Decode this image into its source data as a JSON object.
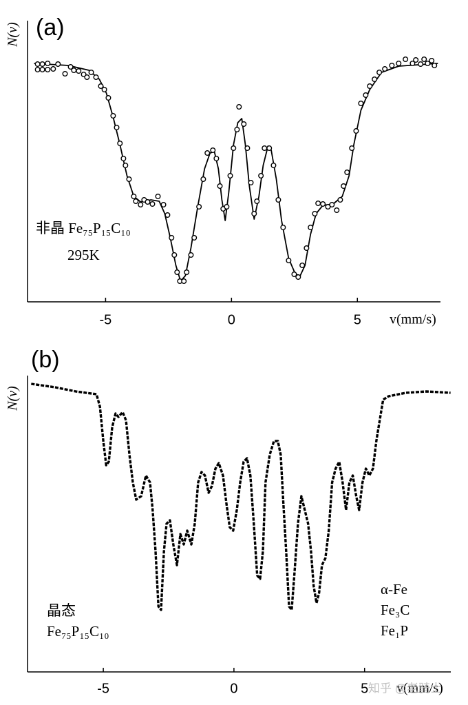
{
  "chart_data": [
    {
      "type": "line",
      "title": "(a)",
      "ylabel": "N(v)",
      "xlabel": "v(mm/s)",
      "annotations": [
        "非晶 Fe₇₅P₁₅C₁₀",
        "295K"
      ],
      "xlim": [
        -8.1,
        8.3
      ],
      "xticks": [
        -5,
        0,
        5
      ],
      "ylim": [
        0,
        408
      ],
      "series": [
        {
          "mode": "lines",
          "color": "#000000",
          "x": [
            -7.84,
            -6.48,
            -5.66,
            -5.25,
            -4.97,
            -4.7,
            -4.43,
            -4.15,
            -3.88,
            -3.61,
            -3.2,
            -2.87,
            -2.65,
            -2.43,
            -2.21,
            -2.02,
            -1.83,
            -1.61,
            -1.34,
            -1.07,
            -0.85,
            -0.68,
            -0.52,
            -0.38,
            -0.25,
            -0.11,
            0.08,
            0.25,
            0.41,
            0.55,
            0.71,
            0.9,
            1.09,
            1.26,
            1.45,
            1.58,
            1.78,
            1.99,
            2.27,
            2.54,
            2.73,
            2.92,
            3.14,
            3.36,
            3.63,
            4.04,
            4.4,
            4.67,
            4.86,
            5.14,
            5.49,
            5.96,
            6.64,
            8.2
          ],
          "values": [
            346,
            343,
            336,
            323,
            303,
            268,
            228,
            183,
            153,
            145,
            148,
            146,
            128,
            93,
            53,
            30,
            38,
            78,
            138,
            193,
            216,
            218,
            193,
            148,
            118,
            158,
            228,
            260,
            266,
            228,
            168,
            120,
            153,
            198,
            226,
            220,
            178,
            118,
            63,
            40,
            38,
            53,
            98,
            128,
            140,
            142,
            153,
            183,
            228,
            278,
            308,
            333,
            342,
            346
          ]
        },
        {
          "mode": "markers",
          "color": "#000000",
          "x": [
            -7.7,
            -7.7,
            -7.51,
            -7.51,
            -7.3,
            -7.3,
            -7.08,
            -6.89,
            -6.61,
            -6.39,
            -6.26,
            -6.07,
            -5.87,
            -5.74,
            -5.57,
            -5.38,
            -5.19,
            -5.05,
            -4.89,
            -4.7,
            -4.56,
            -4.43,
            -4.29,
            -4.21,
            -4.07,
            -3.88,
            -3.8,
            -3.61,
            -3.47,
            -3.33,
            -3.14,
            -2.92,
            -2.7,
            -2.54,
            -2.38,
            -2.27,
            -2.16,
            -2.05,
            -1.89,
            -1.78,
            -1.61,
            -1.48,
            -1.29,
            -1.12,
            -0.96,
            -0.74,
            -0.6,
            -0.46,
            -0.33,
            -0.19,
            -0.05,
            0.08,
            0.22,
            0.3,
            0.49,
            0.63,
            0.77,
            0.9,
            1.01,
            1.17,
            1.31,
            1.5,
            1.67,
            1.86,
            2.05,
            2.27,
            2.49,
            2.65,
            2.81,
            2.98,
            3.14,
            3.31,
            3.44,
            3.63,
            3.83,
            3.99,
            4.18,
            4.32,
            4.45,
            4.59,
            4.78,
            4.95,
            5.14,
            5.33,
            5.49,
            5.68,
            5.87,
            6.09,
            6.37,
            6.64,
            6.91,
            7.19,
            7.32,
            7.51,
            7.65,
            7.79,
            7.95,
            8.06
          ],
          "values": [
            345,
            337,
            345,
            337,
            346,
            337,
            338,
            345,
            331,
            341,
            336,
            335,
            330,
            326,
            333,
            326,
            313,
            308,
            296,
            270,
            253,
            230,
            208,
            198,
            178,
            153,
            146,
            141,
            148,
            145,
            142,
            153,
            141,
            126,
            93,
            68,
            43,
            30,
            30,
            43,
            68,
            93,
            138,
            178,
            216,
            220,
            208,
            168,
            135,
            138,
            183,
            223,
            250,
            283,
            258,
            223,
            173,
            128,
            146,
            183,
            223,
            223,
            198,
            148,
            108,
            60,
            40,
            36,
            53,
            78,
            108,
            128,
            143,
            142,
            138,
            141,
            133,
            148,
            168,
            188,
            223,
            248,
            288,
            300,
            313,
            323,
            333,
            338,
            343,
            346,
            352,
            346,
            351,
            345,
            352,
            346,
            350,
            343
          ]
        }
      ]
    },
    {
      "type": "line",
      "title": "(b)",
      "ylabel": "N(v)",
      "xlabel": "v(mm/s)",
      "annotations": [
        "晶态",
        "Fe₇₅P₁₅C₁₀",
        "α-Fe",
        "Fe₃C",
        "Fe₁P"
      ],
      "xlim": [
        -7.9,
        8.3
      ],
      "xticks": [
        -5,
        0,
        5
      ],
      "ylim": [
        0,
        430
      ],
      "series": [
        {
          "mode": "dots",
          "color": "#000000",
          "x": [
            -7.76,
            -6.84,
            -6.05,
            -5.26,
            -5.13,
            -5.0,
            -4.89,
            -4.79,
            -4.66,
            -4.53,
            -4.42,
            -4.26,
            -4.13,
            -4.0,
            -3.87,
            -3.74,
            -3.55,
            -3.37,
            -3.21,
            -3.11,
            -3.0,
            -2.89,
            -2.79,
            -2.68,
            -2.58,
            -2.45,
            -2.32,
            -2.18,
            -2.05,
            -1.92,
            -1.79,
            -1.63,
            -1.5,
            -1.37,
            -1.24,
            -1.11,
            -0.97,
            -0.84,
            -0.71,
            -0.58,
            -0.42,
            -0.29,
            -0.16,
            -0.03,
            0.11,
            0.24,
            0.37,
            0.5,
            0.63,
            0.76,
            0.89,
            1.0,
            1.11,
            1.21,
            1.37,
            1.53,
            1.68,
            1.79,
            1.89,
            2.0,
            2.11,
            2.21,
            2.32,
            2.45,
            2.58,
            2.71,
            2.84,
            2.95,
            3.05,
            3.16,
            3.26,
            3.37,
            3.5,
            3.63,
            3.76,
            3.89,
            4.03,
            4.16,
            4.29,
            4.42,
            4.55,
            4.68,
            4.79,
            4.92,
            5.05,
            5.18,
            5.32,
            5.45,
            5.58,
            5.71,
            5.92,
            6.58,
            7.37,
            8.29
          ],
          "values": [
            418,
            413,
            407,
            403,
            385,
            335,
            300,
            305,
            355,
            375,
            370,
            377,
            365,
            315,
            275,
            250,
            255,
            285,
            275,
            235,
            175,
            95,
            90,
            175,
            215,
            220,
            185,
            155,
            200,
            185,
            205,
            185,
            215,
            275,
            290,
            285,
            260,
            270,
            295,
            303,
            285,
            245,
            210,
            205,
            235,
            275,
            305,
            310,
            285,
            215,
            140,
            135,
            175,
            275,
            315,
            335,
            335,
            315,
            245,
            175,
            95,
            90,
            145,
            215,
            255,
            235,
            215,
            175,
            125,
            100,
            115,
            155,
            165,
            205,
            275,
            295,
            305,
            275,
            235,
            275,
            285,
            255,
            235,
            275,
            295,
            285,
            295,
            335,
            365,
            395,
            400,
            405,
            407,
            405
          ]
        }
      ]
    }
  ],
  "watermark": "知乎 @老骑士"
}
